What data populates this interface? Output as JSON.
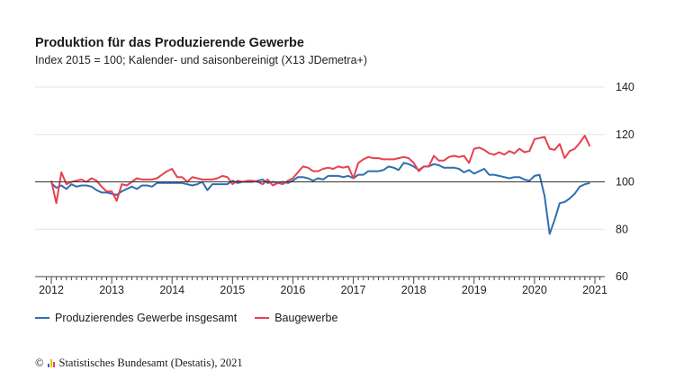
{
  "header": {
    "title": "Produktion für das Produzierende Gewerbe",
    "subtitle": "Index 2015 = 100; Kalender- und saisonbereinigt (X13 JDemetra+)"
  },
  "legend": [
    {
      "label": "Produzierendes Gewerbe insgesamt",
      "color": "#2f6eb0"
    },
    {
      "label": "Baugewerbe",
      "color": "#e8404f"
    }
  ],
  "source": {
    "copyright": "©",
    "text": "Statistisches Bundesamt (Destatis), 2021",
    "logo_icon": "destatis-logo-icon"
  },
  "chart_data": {
    "type": "line",
    "x_start": "2012-01",
    "frequency": "monthly",
    "xticks": [
      "2012",
      "2013",
      "2014",
      "2015",
      "2016",
      "2017",
      "2018",
      "2019",
      "2020",
      "2021"
    ],
    "yticks": [
      "60",
      "80",
      "100",
      "120",
      "140"
    ],
    "ylim": [
      60,
      140
    ],
    "reference_line": 100,
    "grid": "horizontal",
    "series": [
      {
        "name": "Produzierendes Gewerbe insgesamt",
        "color": "#2f6eb0",
        "values": [
          99.5,
          97.5,
          98.5,
          97,
          99,
          98,
          98.5,
          98.5,
          98,
          96.5,
          95.5,
          95.5,
          95,
          94.5,
          96,
          97,
          98,
          97,
          98.5,
          98.5,
          98,
          99.5,
          99.5,
          99.5,
          99.5,
          99.5,
          99.5,
          99,
          98.5,
          99,
          100,
          96.5,
          99,
          99,
          99,
          99,
          100.5,
          99.5,
          100,
          100,
          100,
          100.5,
          101,
          99.5,
          100,
          99.5,
          100,
          99.5,
          100.5,
          102,
          102,
          101.5,
          100.5,
          101.5,
          101,
          102.5,
          102.5,
          102.5,
          102,
          102.5,
          101.5,
          103,
          103,
          104.5,
          104.5,
          104.5,
          105,
          106.5,
          106,
          105,
          108,
          107.5,
          106.5,
          105,
          106.5,
          106.5,
          107.5,
          107,
          106,
          106,
          106,
          105.5,
          104,
          105,
          103.5,
          104.5,
          105.5,
          103,
          103,
          102.5,
          102,
          101.5,
          102,
          102,
          101,
          100.5,
          102.5,
          103,
          94,
          78,
          84,
          91,
          91.5,
          93,
          95,
          98,
          99,
          99.5
        ]
      },
      {
        "name": "Baugewerbe",
        "color": "#e8404f",
        "values": [
          100.5,
          91,
          104,
          99,
          100,
          100.5,
          101,
          100,
          101.5,
          100.5,
          98,
          96,
          96,
          92,
          99,
          98.5,
          100,
          101.5,
          101,
          101,
          101,
          101.5,
          103,
          104.5,
          105.5,
          102,
          102,
          100,
          102,
          101.5,
          101,
          101,
          101,
          101.5,
          102.5,
          102,
          99,
          100.5,
          100,
          100.5,
          100.5,
          100,
          99,
          101,
          98.5,
          99.5,
          99,
          100.5,
          101.5,
          104,
          106.5,
          106,
          104.5,
          104.5,
          105.5,
          106,
          105.5,
          106.5,
          106,
          106.5,
          101.5,
          108,
          109.5,
          110.5,
          110,
          110,
          109.5,
          109.5,
          109.5,
          110,
          110.5,
          110,
          108,
          104.5,
          106.5,
          106.5,
          111,
          109,
          109,
          110.5,
          111,
          110.5,
          111,
          108,
          114,
          114.5,
          113.5,
          112,
          111.5,
          112.5,
          111.5,
          113,
          112,
          114,
          112.5,
          113,
          118,
          118.5,
          119,
          114,
          113.5,
          116,
          110,
          113,
          114,
          116.5,
          119.5,
          115
        ]
      }
    ]
  }
}
